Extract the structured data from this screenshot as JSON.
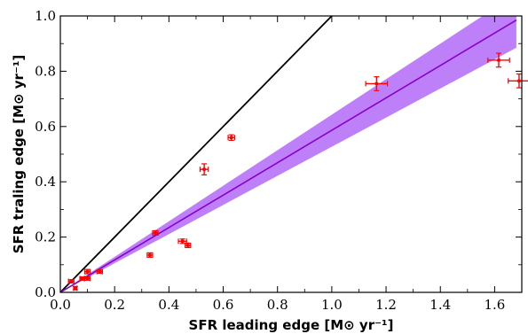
{
  "chart_data": {
    "type": "scatter",
    "xlabel": "SFR leading edge [M⊙ yr⁻¹]",
    "ylabel": "SFR traling edge [M⊙ yr⁻¹]",
    "xlim": [
      0.0,
      1.7
    ],
    "ylim": [
      0.0,
      1.0
    ],
    "xticks": [
      0.0,
      0.2,
      0.4,
      0.6,
      0.8,
      1.0,
      1.2,
      1.4,
      1.6
    ],
    "yticks": [
      0.0,
      0.2,
      0.4,
      0.6,
      0.8,
      1.0
    ],
    "xtick_labels": [
      "0.0",
      "0.2",
      "0.4",
      "0.6",
      "0.8",
      "1.0",
      "1.2",
      "1.4",
      "1.6"
    ],
    "ytick_labels": [
      "0.0",
      "0.2",
      "0.4",
      "0.6",
      "0.8",
      "1.0"
    ],
    "grid": false,
    "points": [
      {
        "x": 0.04,
        "y": 0.04,
        "xerr": 0.01,
        "yerr": 0.006
      },
      {
        "x": 0.055,
        "y": 0.015,
        "xerr": 0.006,
        "yerr": 0.006
      },
      {
        "x": 0.08,
        "y": 0.05,
        "xerr": 0.008,
        "yerr": 0.006
      },
      {
        "x": 0.1,
        "y": 0.05,
        "xerr": 0.01,
        "yerr": 0.006
      },
      {
        "x": 0.1,
        "y": 0.075,
        "xerr": 0.01,
        "yerr": 0.008
      },
      {
        "x": 0.145,
        "y": 0.075,
        "xerr": 0.01,
        "yerr": 0.006
      },
      {
        "x": 0.33,
        "y": 0.135,
        "xerr": 0.01,
        "yerr": 0.008
      },
      {
        "x": 0.35,
        "y": 0.215,
        "xerr": 0.01,
        "yerr": 0.008
      },
      {
        "x": 0.45,
        "y": 0.185,
        "xerr": 0.015,
        "yerr": 0.008
      },
      {
        "x": 0.47,
        "y": 0.17,
        "xerr": 0.01,
        "yerr": 0.008
      },
      {
        "x": 0.53,
        "y": 0.445,
        "xerr": 0.015,
        "yerr": 0.02
      },
      {
        "x": 0.63,
        "y": 0.56,
        "xerr": 0.012,
        "yerr": 0.01
      },
      {
        "x": 1.165,
        "y": 0.755,
        "xerr": 0.04,
        "yerr": 0.025
      },
      {
        "x": 1.615,
        "y": 0.84,
        "xerr": 0.04,
        "yerr": 0.025
      },
      {
        "x": 1.69,
        "y": 0.765,
        "xerr": 0.04,
        "yerr": 0.025
      }
    ],
    "one_to_one_line": {
      "x": [
        0.0,
        1.0
      ],
      "y": [
        0.0,
        1.0
      ],
      "color": "#000000"
    },
    "fit_line": {
      "x": [
        0.0,
        1.68
      ],
      "y": [
        0.0,
        0.985
      ],
      "color": "#8a00c9"
    },
    "fit_band": {
      "x": [
        0.0,
        1.68
      ],
      "lower": [
        0.0,
        0.885
      ],
      "upper": [
        0.0,
        1.08
      ],
      "color": "#a855f7"
    },
    "point_color": "#ff0000"
  }
}
